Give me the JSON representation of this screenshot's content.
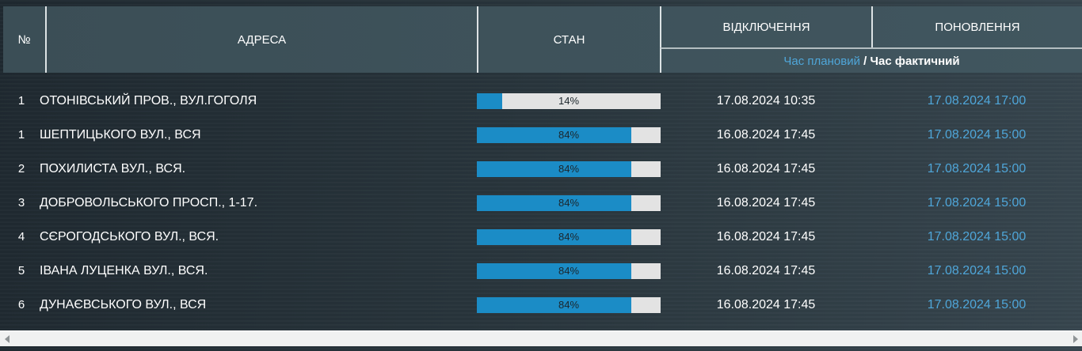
{
  "table": {
    "columns": {
      "num": "№",
      "address": "АДРЕСА",
      "state": "СТАН",
      "off": "ВІДКЛЮЧЕННЯ",
      "restore": "ПОНОВЛЕННЯ"
    },
    "legend": {
      "planned": "Час плановий",
      "separator": " / ",
      "actual": "Час фактичний"
    },
    "rows": [
      {
        "num": "1",
        "address": "ОТОНІВСЬКИЙ ПРОВ., ВУЛ.ГОГОЛЯ",
        "percent": 14,
        "percent_label": "14%",
        "off_time": "17.08.2024 10:35",
        "restore_time": "17.08.2024 17:00"
      },
      {
        "num": "1",
        "address": "ШЕПТИЦЬКОГО ВУЛ., ВСЯ",
        "percent": 84,
        "percent_label": "84%",
        "off_time": "16.08.2024 17:45",
        "restore_time": "17.08.2024 15:00"
      },
      {
        "num": "2",
        "address": "ПОХИЛИСТА ВУЛ., ВСЯ.",
        "percent": 84,
        "percent_label": "84%",
        "off_time": "16.08.2024 17:45",
        "restore_time": "17.08.2024 15:00"
      },
      {
        "num": "3",
        "address": "ДОБРОВОЛЬСЬКОГО ПРОСП., 1-17.",
        "percent": 84,
        "percent_label": "84%",
        "off_time": "16.08.2024 17:45",
        "restore_time": "17.08.2024 15:00"
      },
      {
        "num": "4",
        "address": "СЄРОГОДСЬКОГО ВУЛ., ВСЯ.",
        "percent": 84,
        "percent_label": "84%",
        "off_time": "16.08.2024 17:45",
        "restore_time": "17.08.2024 15:00"
      },
      {
        "num": "5",
        "address": "ІВАНА ЛУЦЕНКА ВУЛ., ВСЯ.",
        "percent": 84,
        "percent_label": "84%",
        "off_time": "16.08.2024 17:45",
        "restore_time": "17.08.2024 15:00"
      },
      {
        "num": "6",
        "address": "ДУНАЄВСЬКОГО ВУЛ., ВСЯ",
        "percent": 84,
        "percent_label": "84%",
        "off_time": "16.08.2024 17:45",
        "restore_time": "17.08.2024 15:00"
      }
    ]
  },
  "icons": {
    "scroll_left": "left-arrow-icon",
    "scroll_right": "right-arrow-icon"
  },
  "colors": {
    "page_bg_dark": "#1f2930",
    "page_bg_light": "#37464f",
    "header_bg": "#3e525b",
    "border_light": "#dde3e5",
    "border_mid": "#b4bec1",
    "progress_fill": "#1b8cc6",
    "progress_track": "#e3e3e3",
    "planned_blue": "#4fa6d9",
    "text_white": "#ffffff",
    "scrollbar_track": "#f0f1f1"
  }
}
